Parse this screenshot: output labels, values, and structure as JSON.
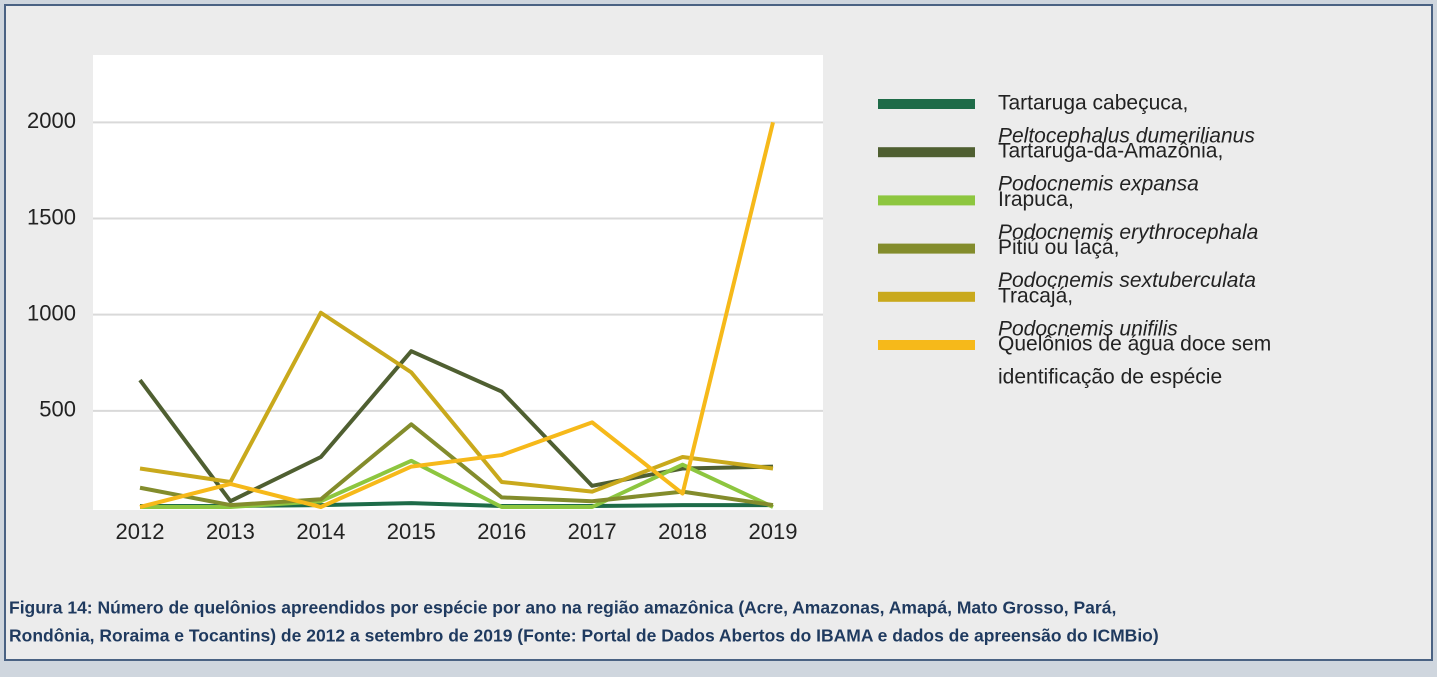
{
  "chart_data": {
    "type": "line",
    "categories": [
      "2012",
      "2013",
      "2014",
      "2015",
      "2016",
      "2017",
      "2018",
      "2019"
    ],
    "series": [
      {
        "name": [
          "Tartaruga cabeçuca,",
          "Peltocephalus dumerilianus"
        ],
        "italic_second_line": true,
        "color": "#1e6b48",
        "values": [
          5,
          5,
          10,
          20,
          5,
          5,
          10,
          10
        ]
      },
      {
        "name": [
          "Tartaruga-da-Amazônia,",
          "Podocnemis expansa"
        ],
        "italic_second_line": true,
        "color": "#4f5f31",
        "values": [
          660,
          30,
          260,
          810,
          600,
          110,
          200,
          210
        ]
      },
      {
        "name": [
          "Irapuca,",
          "Podocnemis erythrocephala"
        ],
        "italic_second_line": true,
        "color": "#8dc63f",
        "values": [
          0,
          0,
          30,
          240,
          0,
          0,
          220,
          0
        ]
      },
      {
        "name": [
          "Pitiú ou Iaçá,",
          "Podocnemis sextuberculata"
        ],
        "italic_second_line": true,
        "color": "#838c2c",
        "values": [
          100,
          10,
          40,
          430,
          50,
          30,
          80,
          10
        ]
      },
      {
        "name": [
          "Tracajá,",
          "Podocnemis unifilis"
        ],
        "italic_second_line": true,
        "color": "#c9a91c",
        "values": [
          200,
          130,
          1010,
          700,
          130,
          80,
          260,
          200
        ]
      },
      {
        "name": [
          "Quelônios de água doce sem",
          "identificação de espécie"
        ],
        "italic_second_line": false,
        "color": "#f6b91a",
        "values": [
          0,
          120,
          0,
          210,
          270,
          440,
          70,
          2000
        ]
      }
    ],
    "ylim": [
      0,
      2350
    ],
    "yticks": [
      500,
      1000,
      1500,
      2000
    ],
    "grid": true,
    "caption": [
      "Figura 14: Número de quelônios apreendidos por espécie por ano na região amazônica (Acre, Amazonas, Amapá, Mato Grosso, Pará,",
      "Rondônia, Roraima e Tocantins) de 2012 a setembro de 2019 (Fonte: Portal de Dados Abertos do IBAMA e dados de apreensão do ICMBio)"
    ]
  }
}
